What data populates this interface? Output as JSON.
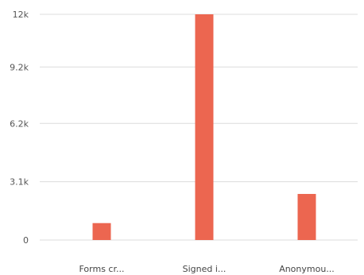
{
  "chart_data": {
    "type": "bar",
    "categories": [
      "Forms cr...",
      "Signed i...",
      "Anonymou..."
    ],
    "values": [
      900,
      12000,
      2450
    ],
    "y_ticks": [
      0,
      3100,
      6200,
      9200,
      12000
    ],
    "y_tick_labels": [
      "0",
      "3.1k",
      "6.2k",
      "9.2k",
      "12k"
    ],
    "ylim": [
      0,
      12000
    ],
    "grid": true,
    "bar_color": "#ec6650",
    "gridline_color": "#dcdcdc"
  }
}
